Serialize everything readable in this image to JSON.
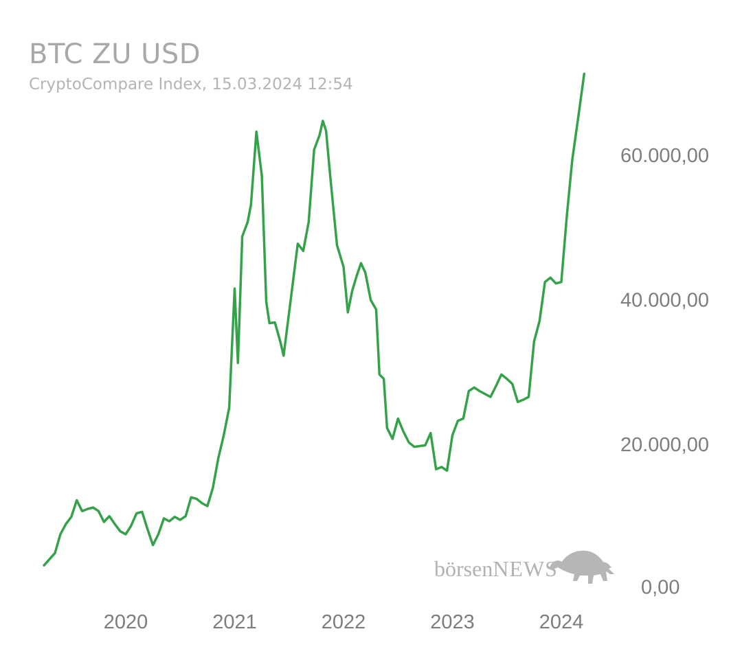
{
  "chart_data": {
    "type": "line",
    "title": "BTC ZU USD",
    "subtitle": "CryptoCompare Index, 15.03.2024 12:54",
    "xlabel": "",
    "ylabel": "",
    "x_tick_labels": [
      "2020",
      "2021",
      "2022",
      "2023",
      "2024"
    ],
    "x_tick_positions": [
      2020.0,
      2021.0,
      2022.0,
      2023.0,
      2024.0
    ],
    "y_tick_labels": [
      "0,00",
      "20.000,00",
      "40.000,00",
      "60.000,00"
    ],
    "y_tick_values": [
      0,
      20000,
      40000,
      60000
    ],
    "xlim": [
      2019.2,
      2024.3
    ],
    "ylim": [
      0,
      67000
    ],
    "grid": false,
    "legend": "none",
    "color": "#35a24a",
    "series": [
      {
        "x": [
          2019.25,
          2019.35,
          2019.4,
          2019.45,
          2019.5,
          2019.55,
          2019.6,
          2019.65,
          2019.7,
          2019.75,
          2019.8,
          2019.85,
          2019.9,
          2019.95,
          2020.0,
          2020.05,
          2020.1,
          2020.15,
          2020.2,
          2020.25,
          2020.3,
          2020.35,
          2020.4,
          2020.45,
          2020.5,
          2020.55,
          2020.6,
          2020.65,
          2020.7,
          2020.75,
          2020.8,
          2020.85,
          2020.9,
          2020.95,
          2021.0,
          2021.03,
          2021.07,
          2021.12,
          2021.15,
          2021.2,
          2021.25,
          2021.29,
          2021.32,
          2021.37,
          2021.42,
          2021.45,
          2021.53,
          2021.58,
          2021.63,
          2021.68,
          2021.73,
          2021.78,
          2021.81,
          2021.84,
          2021.88,
          2021.94,
          2022.0,
          2022.04,
          2022.08,
          2022.12,
          2022.16,
          2022.2,
          2022.25,
          2022.3,
          2022.33,
          2022.37,
          2022.4,
          2022.45,
          2022.5,
          2022.55,
          2022.6,
          2022.65,
          2022.7,
          2022.75,
          2022.8,
          2022.85,
          2022.9,
          2022.95,
          2023.0,
          2023.05,
          2023.1,
          2023.15,
          2023.2,
          2023.25,
          2023.35,
          2023.4,
          2023.45,
          2023.5,
          2023.55,
          2023.6,
          2023.65,
          2023.7,
          2023.75,
          2023.8,
          2023.85,
          2023.9,
          2023.95,
          2024.0,
          2024.05,
          2024.1,
          2024.16,
          2024.21
        ],
        "y": [
          3500,
          5200,
          7800,
          9200,
          10200,
          12500,
          11000,
          11300,
          11500,
          11000,
          9500,
          10300,
          9200,
          8200,
          7800,
          9000,
          10700,
          10900,
          8500,
          6300,
          7800,
          10000,
          9600,
          10200,
          9800,
          10300,
          12900,
          12700,
          12100,
          11700,
          14200,
          18300,
          21500,
          25300,
          41800,
          31500,
          49000,
          51000,
          53400,
          63500,
          57400,
          40000,
          37000,
          37100,
          34400,
          32500,
          42000,
          48000,
          47000,
          51000,
          61000,
          63000,
          65000,
          63600,
          57000,
          47800,
          44800,
          38500,
          41500,
          43500,
          45300,
          44000,
          40200,
          38900,
          29900,
          29300,
          22500,
          21000,
          23800,
          22000,
          20500,
          19900,
          20000,
          20100,
          21800,
          16800,
          17100,
          16600,
          21500,
          23500,
          23800,
          27600,
          28100,
          27600,
          26800,
          28300,
          29900,
          29300,
          28600,
          26100,
          26400,
          26800,
          34500,
          37300,
          42700,
          43300,
          42500,
          42700,
          51700,
          59500,
          66000,
          71500
        ]
      }
    ]
  },
  "watermark": {
    "brand_prefix": "börsen",
    "brand_suffix": "NEWS",
    "icon": "bull-icon"
  }
}
